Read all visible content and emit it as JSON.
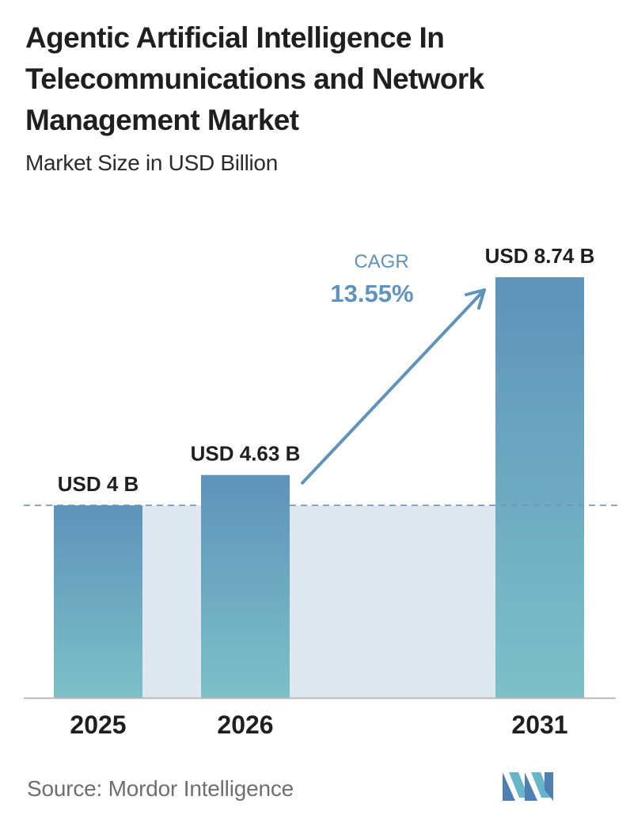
{
  "title": "Agentic Artificial Intelligence In Telecommunications and Network Management Market",
  "subtitle": "Market Size in USD Billion",
  "source": "Source:  Mordor Intelligence",
  "logo_name": "mordor-intelligence-logo",
  "colors": {
    "bar_top": "#5f93ba",
    "bar_bottom": "#7cc0c8",
    "band": "#dfe8f1",
    "accent": "#5f93ba",
    "dashed": "#6d97b8",
    "axis": "#b9b9b9"
  },
  "chart_data": {
    "type": "bar",
    "categories": [
      "2025",
      "2026",
      "2031"
    ],
    "values": [
      4,
      4.63,
      8.74
    ],
    "data_labels": [
      "USD 4 B",
      "USD 4.63 B",
      "USD 8.74 B"
    ],
    "title": "Agentic Artificial Intelligence In Telecommunications and Network Management Market",
    "subtitle": "Market Size in USD Billion",
    "ylim": [
      0,
      8.74
    ],
    "grid": false,
    "reference_line_value": 4,
    "annotation": {
      "label": "CAGR",
      "value": "13.55%"
    }
  }
}
